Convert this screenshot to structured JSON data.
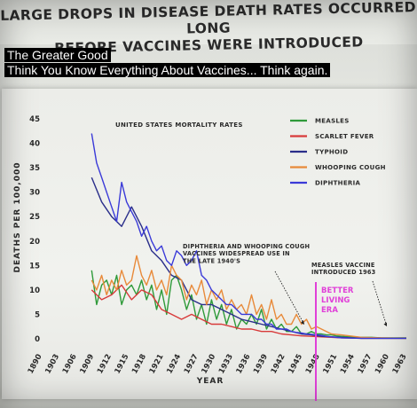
{
  "header": {
    "title_line1": "LARGE DROPS IN DISEASE DEATH RATES OCCURRED LONG",
    "title_line2": "BEFORE VACCINES WERE INTRODUCED"
  },
  "captions": {
    "line1": "The Greater Good",
    "line2": "Think You Know Everything About Vaccines... Think again."
  },
  "chart_data": {
    "type": "line",
    "subtitle": "UNITED STATES MORTALITY RATES",
    "xlabel": "YEAR",
    "ylabel": "DEATHS PER 100,000",
    "xlim": [
      1890,
      1963
    ],
    "ylim": [
      0,
      45
    ],
    "yticks": [
      0,
      5,
      10,
      15,
      20,
      25,
      30,
      35,
      40,
      45
    ],
    "xticks": [
      1890,
      1903,
      1906,
      1909,
      1912,
      1915,
      1918,
      1921,
      1924,
      1927,
      1930,
      1933,
      1936,
      1939,
      1942,
      1945,
      1948,
      1951,
      1954,
      1957,
      1960,
      1963
    ],
    "legend_position": "top-right",
    "grid": false,
    "series": [
      {
        "name": "MEASLES",
        "color": "#2f9a3a",
        "x": [
          1900,
          1901,
          1902,
          1903,
          1904,
          1905,
          1906,
          1907,
          1908,
          1909,
          1910,
          1911,
          1912,
          1913,
          1914,
          1915,
          1916,
          1917,
          1918,
          1919,
          1920,
          1921,
          1922,
          1923,
          1924,
          1925,
          1926,
          1927,
          1928,
          1929,
          1930,
          1931,
          1932,
          1933,
          1934,
          1935,
          1936,
          1937,
          1938,
          1939,
          1940,
          1941,
          1942,
          1943,
          1944,
          1945,
          1946,
          1947,
          1948,
          1949,
          1950,
          1952,
          1954,
          1956,
          1958,
          1960,
          1963
        ],
        "y": [
          14,
          7,
          11,
          12,
          9,
          13,
          7,
          10,
          11,
          9,
          12,
          8,
          11,
          6,
          10,
          5,
          12,
          13,
          10,
          6,
          9,
          4,
          7,
          3,
          8,
          4,
          7,
          3,
          6,
          2,
          4,
          3,
          5,
          3,
          6,
          2,
          4,
          2,
          3,
          1.5,
          1.5,
          2.5,
          1,
          1,
          1.5,
          1,
          1,
          0.8,
          0.8,
          0.6,
          0.5,
          0.4,
          0.3,
          0.3,
          0.2,
          0.2,
          0.2
        ]
      },
      {
        "name": "SCARLET FEVER",
        "color": "#d83a3a",
        "x": [
          1900,
          1902,
          1904,
          1906,
          1908,
          1910,
          1912,
          1914,
          1916,
          1918,
          1920,
          1922,
          1924,
          1926,
          1928,
          1930,
          1932,
          1934,
          1936,
          1938,
          1940,
          1942,
          1944,
          1946,
          1948,
          1950,
          1954,
          1958,
          1963
        ],
        "y": [
          10,
          8,
          9,
          11,
          8,
          10,
          9,
          6,
          5,
          4,
          5,
          4,
          3,
          3,
          2.5,
          2,
          2,
          1.5,
          1.5,
          1,
          0.8,
          0.6,
          0.5,
          0.4,
          0.3,
          0.2,
          0.1,
          0.1,
          0.1
        ]
      },
      {
        "name": "TYPHOID",
        "color": "#2a2e8a",
        "x": [
          1900,
          1902,
          1904,
          1906,
          1908,
          1910,
          1912,
          1914,
          1916,
          1918,
          1920,
          1922,
          1924,
          1926,
          1928,
          1930,
          1932,
          1934,
          1936,
          1938,
          1940,
          1942,
          1944,
          1946,
          1948,
          1950,
          1952,
          1954,
          1958,
          1963
        ],
        "y": [
          33,
          28,
          25,
          23,
          27,
          23,
          18,
          16,
          13,
          12,
          8,
          7,
          7,
          6,
          5,
          4,
          3.5,
          3,
          2.5,
          2,
          1.5,
          1,
          0.8,
          0.5,
          0.4,
          0.3,
          0.2,
          0.1,
          0.1,
          0.1
        ]
      },
      {
        "name": "WHOOPING COUGH",
        "color": "#e88a3a",
        "x": [
          1900,
          1901,
          1902,
          1903,
          1904,
          1905,
          1906,
          1907,
          1908,
          1909,
          1910,
          1911,
          1912,
          1913,
          1914,
          1915,
          1916,
          1917,
          1918,
          1919,
          1920,
          1921,
          1922,
          1923,
          1924,
          1925,
          1926,
          1927,
          1928,
          1929,
          1930,
          1931,
          1932,
          1933,
          1934,
          1935,
          1936,
          1937,
          1938,
          1939,
          1940,
          1941,
          1942,
          1943,
          1944,
          1945,
          1946,
          1947,
          1948,
          1950,
          1954,
          1958,
          1963
        ],
        "y": [
          12,
          10,
          13,
          9,
          12,
          10,
          14,
          11,
          12,
          17,
          13,
          11,
          14,
          10,
          12,
          9,
          15,
          13,
          12,
          8,
          11,
          9,
          12,
          7,
          10,
          8,
          10,
          6,
          8,
          6,
          7,
          5,
          9,
          5,
          7,
          4,
          8,
          4,
          5,
          3,
          3,
          5,
          3,
          4,
          2,
          2.5,
          2,
          1.5,
          1,
          0.8,
          0.3,
          0.2,
          0.1
        ]
      },
      {
        "name": "DIPHTHERIA",
        "color": "#3a3ad8",
        "x": [
          1900,
          1901,
          1902,
          1903,
          1904,
          1905,
          1906,
          1907,
          1908,
          1909,
          1910,
          1911,
          1912,
          1913,
          1914,
          1915,
          1916,
          1917,
          1918,
          1919,
          1920,
          1921,
          1922,
          1923,
          1924,
          1925,
          1926,
          1927,
          1928,
          1929,
          1930,
          1931,
          1932,
          1933,
          1934,
          1935,
          1936,
          1937,
          1938,
          1939,
          1940,
          1941,
          1942,
          1943,
          1944,
          1945,
          1946,
          1947,
          1948,
          1950,
          1954,
          1958,
          1963
        ],
        "y": [
          42,
          36,
          33,
          30,
          27,
          24,
          32,
          28,
          26,
          24,
          21,
          23,
          20,
          18,
          19,
          16,
          15,
          18,
          17,
          15,
          16,
          18,
          13,
          12,
          10,
          9,
          8,
          7,
          7,
          6,
          5,
          5,
          5,
          4,
          4,
          3,
          3,
          2,
          2,
          2,
          1.5,
          1.3,
          1.2,
          1,
          0.9,
          0.8,
          0.7,
          0.5,
          0.4,
          0.2,
          0.1,
          0.1,
          0.1
        ]
      }
    ],
    "annotations": [
      {
        "lines": [
          "DIPHTHERIA AND WHOOPING COUGH",
          "VACCINES WIDESPREAD USE IN",
          "THE LATE 1940'S"
        ]
      },
      {
        "lines": [
          "MEASLES VACCINE",
          "INTRODUCED 1963"
        ]
      }
    ],
    "overlay": {
      "lines": [
        "BETTER",
        "LIVING",
        "ERA"
      ],
      "color": "#e040d8"
    }
  }
}
